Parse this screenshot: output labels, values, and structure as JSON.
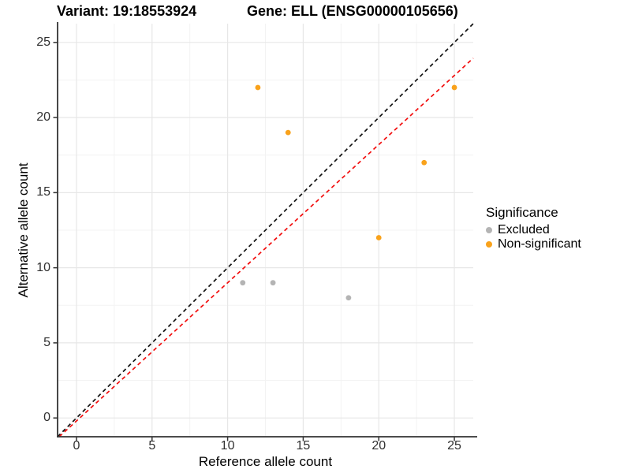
{
  "header": {
    "title_left": "Variant: 19:18553924",
    "title_right": "Gene: ELL (ENSG00000105656)"
  },
  "legend": {
    "title": "Significance",
    "items": [
      {
        "label": "Excluded",
        "color": "#B4B4B4"
      },
      {
        "label": "Non-significant",
        "color": "#F9A21B"
      }
    ]
  },
  "chart_data": {
    "type": "scatter",
    "title": "Variant: 19:18553924  /  Gene: ELL (ENSG00000105656)",
    "xlabel": "Reference allele count",
    "ylabel": "Alternative allele count",
    "xlim": [
      -1.25,
      26.25
    ],
    "ylim": [
      -1.25,
      26.25
    ],
    "x_ticks": [
      0,
      5,
      10,
      15,
      20,
      25
    ],
    "y_ticks": [
      0,
      5,
      10,
      15,
      20,
      25
    ],
    "minor_ticks": [
      2.5,
      7.5,
      12.5,
      17.5,
      22.5
    ],
    "grid": true,
    "grid_major_color": "#E7E7E7",
    "grid_minor_color": "#F3F3F3",
    "axis_line_color": "#333333",
    "series": [
      {
        "name": "Excluded",
        "color": "#B4B4B4",
        "points": [
          [
            11,
            9
          ],
          [
            13,
            9
          ],
          [
            18,
            8
          ]
        ]
      },
      {
        "name": "Non-significant",
        "color": "#F9A21B",
        "points": [
          [
            12,
            22
          ],
          [
            14,
            19
          ],
          [
            20,
            12
          ],
          [
            23,
            17
          ],
          [
            25,
            22
          ]
        ]
      }
    ],
    "lines": [
      {
        "name": "identity-line",
        "color": "#111111",
        "style": "dashed",
        "slope": 1,
        "intercept": 0,
        "from": [
          -1.25,
          -1.25
        ],
        "to": [
          26.25,
          26.25
        ]
      },
      {
        "name": "fit-line",
        "color": "#F20D0D",
        "style": "dashed",
        "slope": 0.92,
        "intercept": -0.2,
        "from": [
          -1.141,
          -1.25
        ],
        "to": [
          26.25,
          23.95
        ]
      }
    ],
    "legend_position": "right"
  }
}
